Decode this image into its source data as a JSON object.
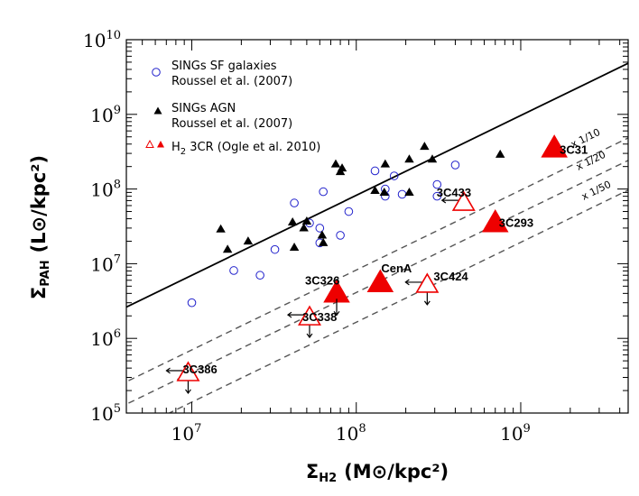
{
  "chart_data": {
    "type": "scatter",
    "x_scale": "log",
    "y_scale": "log",
    "xlim": [
      4000000,
      4500000000
    ],
    "ylim": [
      100000,
      10000000000
    ],
    "xlabel": {
      "symbol": "Σ",
      "sub": "H2",
      "units": "(M⊙/kpc²)"
    },
    "ylabel": {
      "symbol": "Σ",
      "sub": "PAH",
      "units": "(L⊙/kpc²)"
    },
    "x_ticks": [
      {
        "value": 10000000,
        "base": "10",
        "exp": "7"
      },
      {
        "value": 100000000,
        "base": "10",
        "exp": "8"
      },
      {
        "value": 1000000000,
        "base": "10",
        "exp": "9"
      }
    ],
    "y_ticks": [
      {
        "value": 100000,
        "base": "10",
        "exp": "5"
      },
      {
        "value": 1000000,
        "base": "10",
        "exp": "6"
      },
      {
        "value": 10000000,
        "base": "10",
        "exp": "7"
      },
      {
        "value": 100000000,
        "base": "10",
        "exp": "8"
      },
      {
        "value": 1000000000,
        "base": "10",
        "exp": "9"
      },
      {
        "value": 10000000000,
        "base": "10",
        "exp": "10"
      }
    ],
    "legend": {
      "placement": "top-left",
      "entries": [
        {
          "marker": "open-circle-blue",
          "line1": "SINGs SF galaxies",
          "line2": "Roussel et al. (2007)"
        },
        {
          "marker": "filled-triangle-black",
          "line1": "SINGs AGN",
          "line2": "Roussel et al. (2007)"
        },
        {
          "marker": "red-triangles",
          "pre": "H",
          "sub": "2",
          "post": " 3CR (Ogle et al. 2010)"
        }
      ]
    },
    "relations": [
      {
        "name": "SF relation",
        "style": "solid",
        "factor": 1,
        "label": ""
      },
      {
        "name": "x 1/10",
        "style": "dashed",
        "factor": 0.1,
        "label": "x 1/10"
      },
      {
        "name": "x 1/20",
        "style": "dashed",
        "factor": 0.05,
        "label": "x 1/20"
      },
      {
        "name": "x 1/50",
        "style": "dashed",
        "factor": 0.02,
        "label": "x 1/50"
      }
    ],
    "relation_anchor": {
      "x": 10000000,
      "y": 7000000,
      "slope": 1.07
    },
    "series": [
      {
        "name": "SINGs SF galaxies",
        "marker": "open-circle",
        "color": "#2222cc",
        "points": [
          [
            10000000,
            3000000
          ],
          [
            18000000,
            8100000
          ],
          [
            26000000,
            7000000
          ],
          [
            32000000,
            15500000
          ],
          [
            42000000,
            65000000
          ],
          [
            52000000,
            35000000
          ],
          [
            60000000,
            19000000
          ],
          [
            60000000,
            30000000
          ],
          [
            63000000,
            92000000
          ],
          [
            80000000,
            24000000
          ],
          [
            90000000,
            50000000
          ],
          [
            130000000,
            175000000
          ],
          [
            150000000,
            80000000
          ],
          [
            150000000,
            100000000
          ],
          [
            170000000,
            150000000
          ],
          [
            190000000,
            85000000
          ],
          [
            310000000,
            115000000
          ],
          [
            310000000,
            80000000
          ],
          [
            400000000,
            210000000
          ]
        ]
      },
      {
        "name": "SINGs AGN",
        "marker": "filled-triangle",
        "color": "#000000",
        "points": [
          [
            15000000,
            29000000
          ],
          [
            16500000,
            15500000
          ],
          [
            22000000,
            20000000
          ],
          [
            41000000,
            36000000
          ],
          [
            42000000,
            16500000
          ],
          [
            48000000,
            30000000
          ],
          [
            50000000,
            37000000
          ],
          [
            62000000,
            24000000
          ],
          [
            63000000,
            19000000
          ],
          [
            75000000,
            215000000
          ],
          [
            80000000,
            170000000
          ],
          [
            82000000,
            190000000
          ],
          [
            130000000,
            95000000
          ],
          [
            148000000,
            90000000
          ],
          [
            150000000,
            215000000
          ],
          [
            210000000,
            90000000
          ],
          [
            210000000,
            250000000
          ],
          [
            260000000,
            370000000
          ],
          [
            290000000,
            250000000
          ],
          [
            750000000,
            290000000
          ]
        ]
      },
      {
        "name": "H2 3CR detections",
        "marker": "filled-triangle-large",
        "color": "#ee0000",
        "points": [
          {
            "x": 1600000000,
            "y": 350000000,
            "label": "3C31"
          },
          {
            "x": 700000000,
            "y": 35000000,
            "label": "3C293"
          },
          {
            "x": 76000000,
            "y": 4000000,
            "label": "3C326"
          },
          {
            "x": 140000000,
            "y": 5500000,
            "label": "CenA"
          }
        ]
      },
      {
        "name": "H2 3CR upper limits",
        "marker": "open-triangle-large",
        "color": "#ee0000",
        "points": [
          {
            "x": 450000000,
            "y": 65000000,
            "label": "3C433",
            "limits": "x"
          },
          {
            "x": 270000000,
            "y": 5200000,
            "label": "3C424",
            "limits": "xy"
          },
          {
            "x": 52000000,
            "y": 1900000,
            "label": "3C338",
            "limits": "xy"
          },
          {
            "x": 9500000,
            "y": 340000,
            "label": "3C386",
            "limits": "xy"
          }
        ]
      }
    ]
  }
}
